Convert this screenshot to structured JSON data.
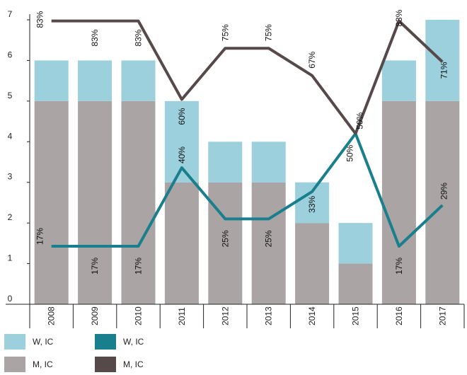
{
  "chart_data": {
    "type": "bar",
    "categories": [
      "2008",
      "2009",
      "2010",
      "2011",
      "2012",
      "2013",
      "2014",
      "2015",
      "2016",
      "2017"
    ],
    "ylim": [
      0,
      7
    ],
    "yticks": [
      0,
      1,
      2,
      3,
      4,
      5,
      6,
      7
    ],
    "bar_series": [
      {
        "name": "M, IC",
        "values": [
          5,
          5,
          5,
          3,
          3,
          3,
          2,
          1,
          5,
          5
        ],
        "color": "#aaa4a4"
      },
      {
        "name": "W, IC",
        "values": [
          1,
          1,
          1,
          2,
          1,
          1,
          1,
          1,
          1,
          2
        ],
        "color": "#9bd0dc"
      }
    ],
    "line_series": [
      {
        "name": "W, IC",
        "percent": [
          17,
          17,
          17,
          40,
          25,
          25,
          33,
          50,
          17,
          29
        ],
        "labels": [
          "17%",
          "17%",
          "17%",
          "40%",
          "25%",
          "25%",
          "33%",
          "50%",
          "17%",
          "29%"
        ],
        "color": "#1a7f8c"
      },
      {
        "name": "M, IC",
        "percent": [
          83,
          83,
          83,
          60,
          75,
          75,
          67,
          50,
          83,
          71
        ],
        "labels": [
          "83%",
          "83%",
          "83%",
          "60%",
          "75%",
          "75%",
          "67%",
          "50%",
          "83%",
          "71%"
        ],
        "color": "#55494a"
      }
    ],
    "grid": false
  },
  "legend": [
    {
      "label": "W, IC",
      "color": "#9bd0dc"
    },
    {
      "label": "W, IC",
      "color": "#1a7f8c"
    },
    {
      "label": "M, IC",
      "color": "#aaa4a4"
    },
    {
      "label": "M, IC",
      "color": "#55494a"
    }
  ]
}
